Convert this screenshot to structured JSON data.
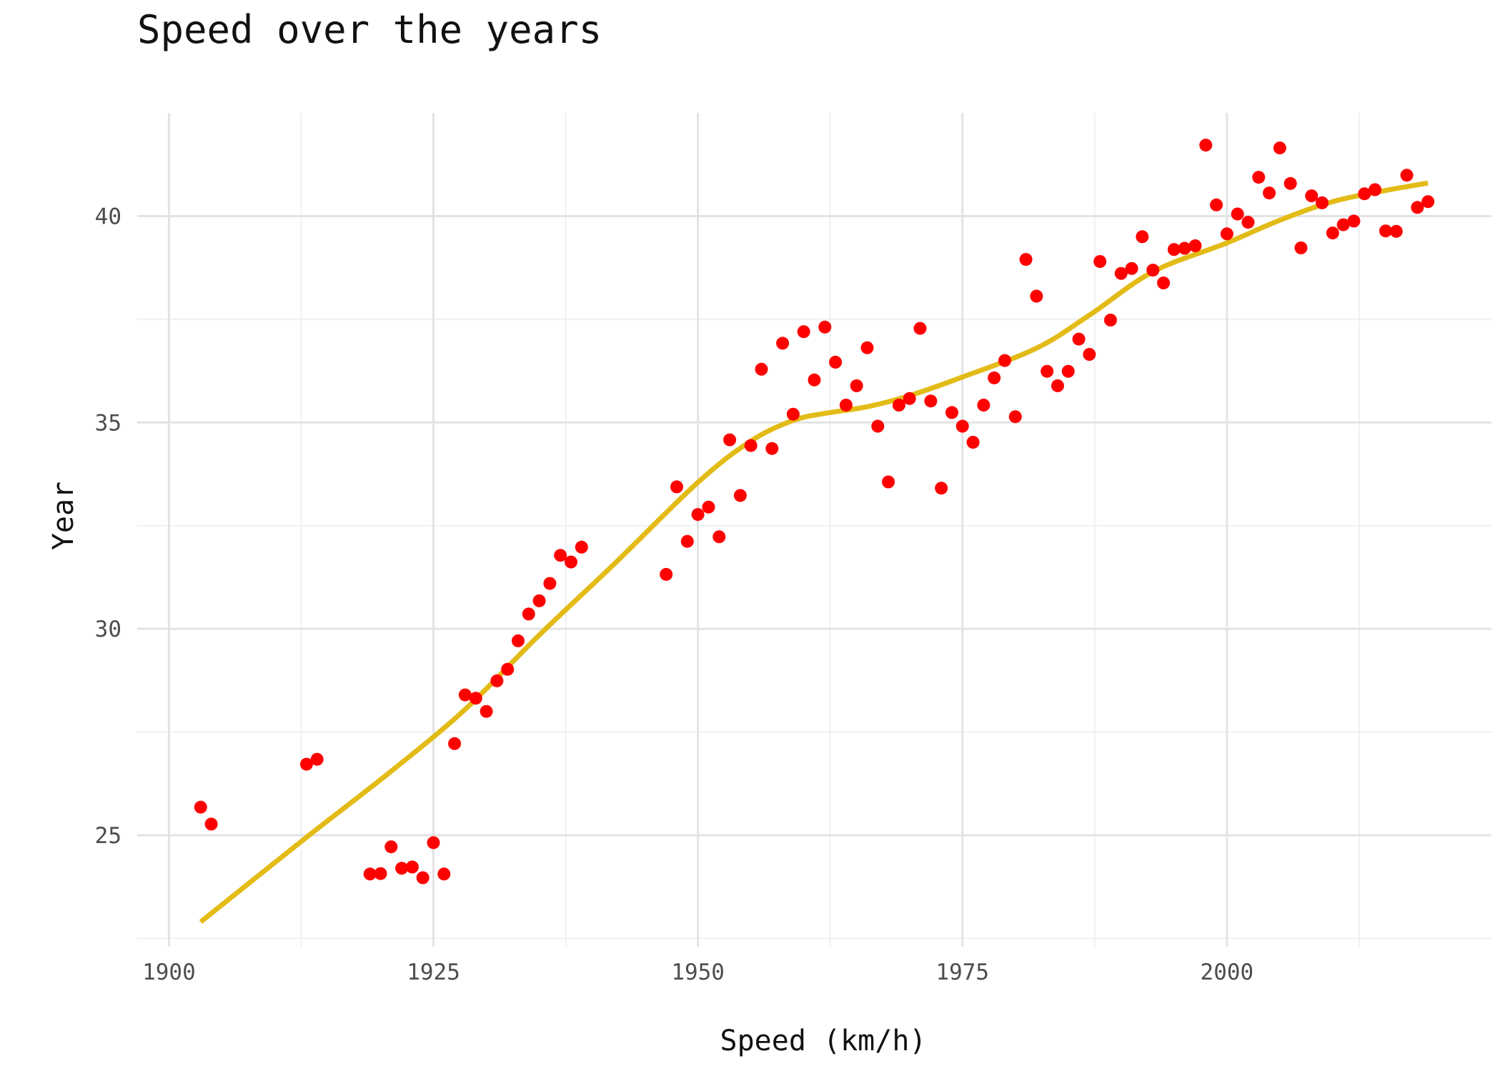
{
  "chart_data": {
    "type": "scatter",
    "title": "Speed over the years",
    "xlabel": "Speed (km/h)",
    "ylabel": "Year",
    "xlim": [
      1897,
      2025
    ],
    "ylim": [
      22.3,
      42.5
    ],
    "x_ticks": [
      1900,
      1925,
      1950,
      1975,
      2000
    ],
    "y_ticks": [
      25,
      30,
      35,
      40
    ],
    "grid": true,
    "legend": "none",
    "colors": {
      "points": "#ff0000",
      "trend": "#e3bb17",
      "grid": "#e3e3e3"
    },
    "series": [
      {
        "type": "scatter",
        "x": [
          1903,
          1904,
          1913,
          1914,
          1919,
          1920,
          1921,
          1922,
          1923,
          1924,
          1925,
          1926,
          1927,
          1928,
          1929,
          1930,
          1931,
          1932,
          1933,
          1934,
          1935,
          1936,
          1937,
          1938,
          1939,
          1947,
          1948,
          1949,
          1950,
          1951,
          1952,
          1953,
          1954,
          1955,
          1956,
          1957,
          1958,
          1959,
          1960,
          1961,
          1962,
          1963,
          1964,
          1965,
          1966,
          1967,
          1968,
          1969,
          1970,
          1971,
          1972,
          1973,
          1974,
          1975,
          1976,
          1977,
          1978,
          1979,
          1980,
          1981,
          1982,
          1983,
          1984,
          1985,
          1986,
          1987,
          1988,
          1989,
          1990,
          1991,
          1992,
          1993,
          1994,
          1995,
          1996,
          1997,
          1998,
          1999,
          2000,
          2001,
          2002,
          2003,
          2004,
          2005,
          2006,
          2007,
          2008,
          2009,
          2010,
          2011,
          2012,
          2013,
          2014,
          2015,
          2016,
          2017,
          2018,
          2019
        ],
        "y": [
          25.68,
          25.27,
          26.72,
          26.84,
          24.06,
          24.07,
          24.72,
          24.2,
          24.23,
          23.97,
          24.82,
          24.06,
          27.22,
          28.4,
          28.32,
          28.0,
          28.74,
          29.02,
          29.71,
          30.36,
          30.68,
          31.1,
          31.78,
          31.62,
          31.98,
          31.32,
          33.44,
          32.12,
          32.77,
          32.95,
          32.23,
          34.58,
          33.23,
          34.44,
          36.29,
          34.37,
          36.92,
          35.2,
          37.2,
          36.03,
          37.31,
          36.46,
          35.42,
          35.89,
          36.81,
          34.91,
          33.56,
          35.42,
          35.58,
          37.28,
          35.52,
          33.41,
          35.24,
          34.91,
          34.52,
          35.42,
          36.08,
          36.5,
          35.14,
          38.95,
          38.06,
          36.24,
          35.89,
          36.24,
          37.02,
          36.65,
          38.9,
          37.48,
          38.61,
          38.73,
          39.5,
          38.69,
          38.38,
          39.19,
          39.22,
          39.28,
          41.72,
          40.27,
          39.57,
          40.05,
          39.85,
          40.94,
          40.56,
          41.65,
          40.79,
          39.23,
          40.49,
          40.32,
          39.59,
          39.79,
          39.88,
          40.54,
          40.64,
          39.64,
          39.63,
          40.99,
          40.21,
          40.35
        ]
      },
      {
        "type": "line",
        "x": [
          1903,
          1913,
          1921,
          1928,
          1935,
          1942,
          1950,
          1955,
          1959,
          1962,
          1966,
          1970,
          1975,
          1982,
          1987,
          1993,
          2000,
          2005,
          2010,
          2015,
          2019
        ],
        "y": [
          22.9,
          24.95,
          26.55,
          28.05,
          29.85,
          31.55,
          33.55,
          34.55,
          35.05,
          35.22,
          35.38,
          35.65,
          36.1,
          36.8,
          37.6,
          38.65,
          39.35,
          39.9,
          40.35,
          40.62,
          40.8
        ]
      }
    ]
  }
}
